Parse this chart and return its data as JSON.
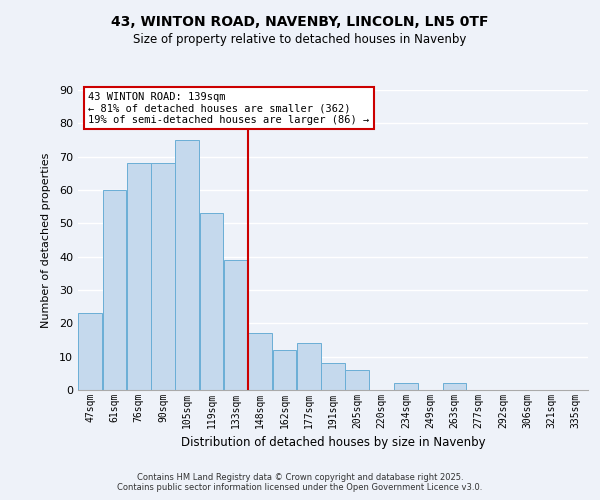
{
  "title": "43, WINTON ROAD, NAVENBY, LINCOLN, LN5 0TF",
  "subtitle": "Size of property relative to detached houses in Navenby",
  "xlabel": "Distribution of detached houses by size in Navenby",
  "ylabel": "Number of detached properties",
  "categories": [
    "47sqm",
    "61sqm",
    "76sqm",
    "90sqm",
    "105sqm",
    "119sqm",
    "133sqm",
    "148sqm",
    "162sqm",
    "177sqm",
    "191sqm",
    "205sqm",
    "220sqm",
    "234sqm",
    "249sqm",
    "263sqm",
    "277sqm",
    "292sqm",
    "306sqm",
    "321sqm",
    "335sqm"
  ],
  "values": [
    23,
    60,
    68,
    68,
    75,
    53,
    39,
    17,
    12,
    14,
    8,
    6,
    0,
    2,
    0,
    2,
    0,
    0,
    0,
    0,
    0
  ],
  "bar_color": "#c5d9ed",
  "bar_edge_color": "#6aaed6",
  "vline_color": "#cc0000",
  "vline_index": 7,
  "ylim": [
    0,
    90
  ],
  "yticks": [
    0,
    10,
    20,
    30,
    40,
    50,
    60,
    70,
    80,
    90
  ],
  "annotation_title": "43 WINTON ROAD: 139sqm",
  "annotation_line1": "← 81% of detached houses are smaller (362)",
  "annotation_line2": "19% of semi-detached houses are larger (86) →",
  "background_color": "#eef2f9",
  "grid_color": "#ffffff",
  "footer_line1": "Contains HM Land Registry data © Crown copyright and database right 2025.",
  "footer_line2": "Contains public sector information licensed under the Open Government Licence v3.0."
}
